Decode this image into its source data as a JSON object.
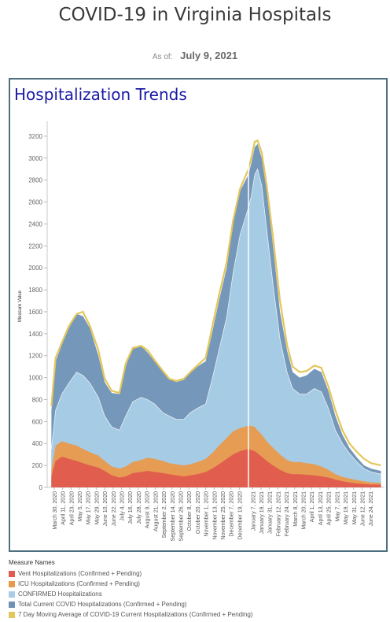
{
  "header": {
    "title": "COVID-19 in Virginia Hospitals",
    "as_of_label": "As of:",
    "as_of_value": "July 9, 2021"
  },
  "panel": {
    "title": "Hospitalization Trends"
  },
  "chart_data": {
    "type": "area",
    "title": "Hospitalization Trends",
    "ylabel": "Measure Value",
    "xlabel": "",
    "ylim": [
      0,
      3300
    ],
    "yticks": [
      0,
      200,
      400,
      600,
      800,
      1000,
      1200,
      1400,
      1600,
      1800,
      2000,
      2200,
      2400,
      2600,
      2800,
      3000,
      3200
    ],
    "grid": false,
    "x_tick_labels": [
      "March 30, 2020",
      "April 11, 2020",
      "April 23, 2020",
      "May 5, 2020",
      "May 17, 2020",
      "May 29, 2020",
      "June 10, 2020",
      "June 22, 2020",
      "July 4, 2020",
      "July 16, 2020",
      "July 28, 2020",
      "August 9, 2020",
      "August 21, 2020",
      "September 2, 2020",
      "September 14, 2020",
      "September 26, 2020",
      "October 8, 2020",
      "October 20, 2020",
      "November 1, 2020",
      "November 13, 2020",
      "November 25, 2020",
      "December 7, 2020",
      "December 19, 2020",
      "January 7, 2021",
      "January 19, 2021",
      "January 31, 2021",
      "February 12, 2021",
      "February 24, 2021",
      "March 8, 2021",
      "March 20, 2021",
      "April 1, 2021",
      "April 13, 2021",
      "April 25, 2021",
      "May 7, 2021",
      "May 19, 2021",
      "May 31, 2021",
      "June 12, 2021",
      "June 24, 2021"
    ],
    "reference_line_date": "January 1, 2021",
    "x": [
      "2020-03-26",
      "2020-04-01",
      "2020-04-10",
      "2020-04-20",
      "2020-05-01",
      "2020-05-10",
      "2020-05-20",
      "2020-06-01",
      "2020-06-10",
      "2020-06-20",
      "2020-07-01",
      "2020-07-10",
      "2020-07-20",
      "2020-08-01",
      "2020-08-10",
      "2020-08-20",
      "2020-09-01",
      "2020-09-10",
      "2020-09-20",
      "2020-10-01",
      "2020-10-10",
      "2020-10-20",
      "2020-11-01",
      "2020-11-10",
      "2020-11-20",
      "2020-12-01",
      "2020-12-10",
      "2020-12-20",
      "2021-01-01",
      "2021-01-05",
      "2021-01-10",
      "2021-01-14",
      "2021-01-20",
      "2021-01-27",
      "2021-02-05",
      "2021-02-15",
      "2021-02-25",
      "2021-03-05",
      "2021-03-15",
      "2021-03-25",
      "2021-04-05",
      "2021-04-15",
      "2021-04-25",
      "2021-05-05",
      "2021-05-15",
      "2021-05-25",
      "2021-06-05",
      "2021-06-15",
      "2021-06-25",
      "2021-07-09"
    ],
    "series": [
      {
        "name": "Vent Hospitalizations (Confirmed + Pending)",
        "color": "#e05a4e",
        "values": [
          100,
          240,
          280,
          260,
          240,
          220,
          200,
          180,
          150,
          110,
          90,
          100,
          130,
          140,
          150,
          140,
          130,
          120,
          110,
          100,
          110,
          120,
          140,
          170,
          210,
          260,
          300,
          330,
          350,
          340,
          330,
          310,
          280,
          240,
          200,
          160,
          130,
          120,
          120,
          115,
          110,
          100,
          90,
          70,
          55,
          45,
          35,
          30,
          25,
          25
        ]
      },
      {
        "name": "ICU Hospitalizations (Confirmed + Pending)",
        "color": "#e9994a",
        "values": [
          160,
          380,
          420,
          400,
          380,
          350,
          320,
          290,
          240,
          190,
          170,
          190,
          230,
          250,
          270,
          260,
          240,
          220,
          210,
          200,
          210,
          230,
          260,
          310,
          380,
          450,
          510,
          540,
          560,
          560,
          550,
          520,
          480,
          420,
          360,
          300,
          250,
          230,
          230,
          220,
          210,
          190,
          160,
          120,
          95,
          80,
          65,
          55,
          45,
          40
        ]
      },
      {
        "name": "CONFIRMED Hospitalizations",
        "color": "#a9cde6",
        "values": [
          350,
          700,
          850,
          950,
          1050,
          1020,
          950,
          820,
          650,
          550,
          520,
          650,
          780,
          820,
          800,
          760,
          680,
          650,
          620,
          620,
          680,
          720,
          760,
          980,
          1250,
          1550,
          1950,
          2300,
          2550,
          2650,
          2850,
          2900,
          2750,
          2350,
          1850,
          1350,
          1050,
          900,
          850,
          850,
          900,
          870,
          720,
          520,
          400,
          310,
          230,
          170,
          140,
          120
        ]
      },
      {
        "name": "Total Current COVID Hospitalizations (Confirmed + Pending)",
        "color": "#6e91b5",
        "values": [
          700,
          1150,
          1300,
          1450,
          1580,
          1560,
          1450,
          1200,
          960,
          860,
          850,
          1100,
          1280,
          1290,
          1230,
          1150,
          1050,
          990,
          960,
          980,
          1040,
          1100,
          1150,
          1400,
          1700,
          2000,
          2400,
          2700,
          2850,
          2950,
          3100,
          3130,
          3000,
          2700,
          2200,
          1600,
          1250,
          1050,
          1000,
          1020,
          1080,
          1050,
          880,
          650,
          480,
          360,
          270,
          200,
          170,
          150
        ]
      },
      {
        "name": "7 Day Moving Average of COVID-19 Current Hospitalizations (Confirmed + Pending)",
        "color": "#e3c75a",
        "values": [
          740,
          1180,
          1320,
          1470,
          1580,
          1600,
          1470,
          1250,
          990,
          880,
          860,
          1130,
          1270,
          1290,
          1250,
          1160,
          1060,
          990,
          970,
          990,
          1050,
          1110,
          1180,
          1450,
          1750,
          2050,
          2430,
          2720,
          2900,
          3000,
          3150,
          3160,
          3050,
          2750,
          2280,
          1700,
          1300,
          1100,
          1050,
          1060,
          1110,
          1090,
          920,
          700,
          520,
          400,
          320,
          260,
          220,
          200
        ]
      }
    ],
    "legend": {
      "title": "Measure Names",
      "position": "bottom",
      "entries": [
        {
          "name": "Vent Hospitalizations (Confirmed + Pending)",
          "color": "#e05a4e"
        },
        {
          "name": "ICU Hospitalizations (Confirmed + Pending)",
          "color": "#e9994a"
        },
        {
          "name": "CONFIRMED Hospitalizations",
          "color": "#a9cde6"
        },
        {
          "name": "Total Current COVID Hospitalizations (Confirmed + Pending)",
          "color": "#6e91b5"
        },
        {
          "name": "7 Day Moving Average of COVID-19 Current Hospitalizations (Confirmed + Pending)",
          "color": "#e3c75a"
        }
      ]
    }
  }
}
